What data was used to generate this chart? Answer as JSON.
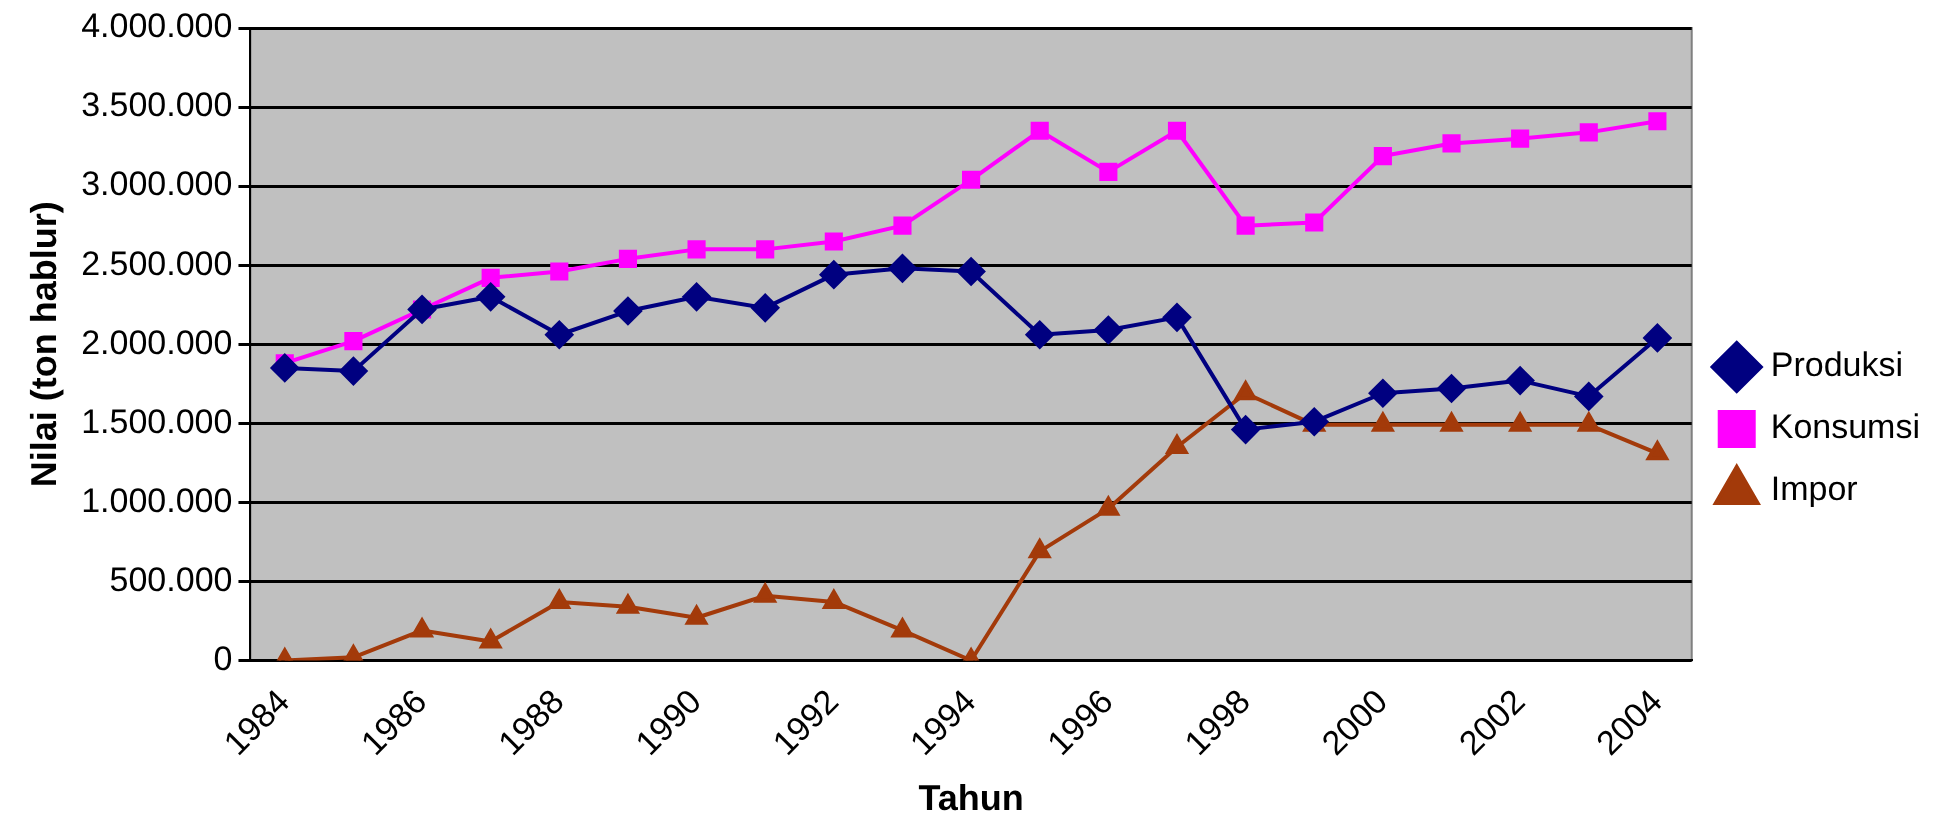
{
  "chart_data": {
    "type": "line",
    "xlabel": "Tahun",
    "ylabel": "Nilai (ton hablur)",
    "categories": [
      "1984",
      null,
      "1986",
      null,
      "1988",
      null,
      "1990",
      null,
      "1992",
      null,
      "1994",
      null,
      "1996",
      null,
      "1998",
      null,
      "2000",
      null,
      "2002",
      null,
      "2004"
    ],
    "series": [
      {
        "name": "Produksi",
        "color": "#000080",
        "marker": "diamond",
        "values": [
          1850000,
          1830000,
          2220000,
          2300000,
          2060000,
          2210000,
          2300000,
          2230000,
          2440000,
          2480000,
          2460000,
          2060000,
          2090000,
          2170000,
          1460000,
          1510000,
          1690000,
          1720000,
          1770000,
          1670000,
          2040000
        ]
      },
      {
        "name": "Konsumsi",
        "color": "#ff00ff",
        "marker": "square",
        "values": [
          1880000,
          2020000,
          2220000,
          2420000,
          2460000,
          2540000,
          2600000,
          2600000,
          2650000,
          2750000,
          3040000,
          3350000,
          3090000,
          3350000,
          2750000,
          2770000,
          3190000,
          3270000,
          3300000,
          3340000,
          3410000
        ]
      },
      {
        "name": "Impor",
        "color": "#a33a0a",
        "marker": "triangle",
        "values": [
          0,
          20000,
          190000,
          120000,
          370000,
          340000,
          270000,
          410000,
          370000,
          190000,
          0,
          690000,
          960000,
          1350000,
          1690000,
          1490000,
          1490000,
          1490000,
          1490000,
          1490000,
          1310000
        ]
      }
    ],
    "ylim": [
      0,
      4000000
    ],
    "yticks": [
      {
        "value": 0,
        "label": "0"
      },
      {
        "value": 500000,
        "label": "500.000"
      },
      {
        "value": 1000000,
        "label": "1.000.000"
      },
      {
        "value": 1500000,
        "label": "1.500.000"
      },
      {
        "value": 2000000,
        "label": "2.000.000"
      },
      {
        "value": 2500000,
        "label": "2.500.000"
      },
      {
        "value": 3000000,
        "label": "3.000.000"
      },
      {
        "value": 3500000,
        "label": "3.500.000"
      },
      {
        "value": 4000000,
        "label": "4.000.000"
      }
    ],
    "grid": "y",
    "legend": "right",
    "line_style": "solid"
  }
}
